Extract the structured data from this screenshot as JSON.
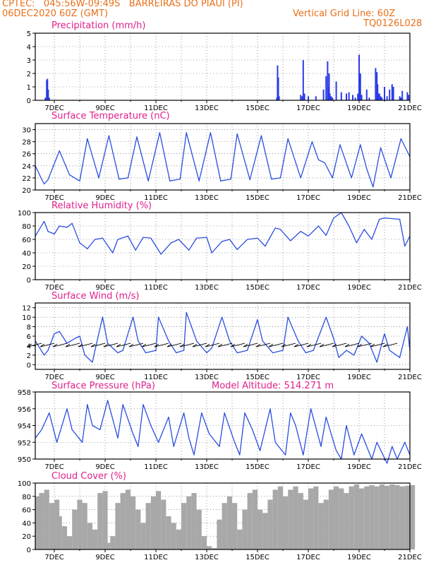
{
  "header": {
    "line1": "CPTEC:   045:56W-09:49S   BARREIRAS DO PIAUI (PI)",
    "line2": "06DEC2020 60Z (GMT)",
    "grid_note": "Vertical Grid Line: 60Z",
    "code": "TQ0126L028"
  },
  "colors": {
    "line": "#2a4de0",
    "bar": "#2a3be6",
    "cloud": "#a8a8a8",
    "title": "#e0208c",
    "header": "#e8701a"
  },
  "x_labels": [
    "7DEC",
    "9DEC",
    "11DEC",
    "13DEC",
    "15DEC",
    "17DEC",
    "19DEC",
    "21DEC"
  ],
  "chart_data": [
    {
      "id": "precip",
      "type": "bar",
      "title": "Precipitation (mm/h)",
      "subtitle": "",
      "ylim": [
        0,
        5
      ],
      "yticks": [
        0,
        1,
        2,
        3,
        4,
        5
      ],
      "x_range_days": [
        6.25,
        21.0
      ],
      "series": [
        {
          "x": [
            6.65,
            6.7,
            6.73,
            6.76,
            6.8,
            15.76,
            15.79,
            15.82,
            15.85,
            16.7,
            16.76,
            16.8,
            16.85,
            17.0,
            17.3,
            17.6,
            17.7,
            17.76,
            17.79,
            17.82,
            17.85,
            17.9,
            17.95,
            18.1,
            18.3,
            18.5,
            18.6,
            18.75,
            18.85,
            18.95,
            19.0,
            19.05,
            19.1,
            19.3,
            19.4,
            19.65,
            19.7,
            19.73,
            19.76,
            19.8,
            19.85,
            19.9,
            20.0,
            20.1,
            20.2,
            20.3,
            20.35,
            20.6,
            20.65,
            20.7,
            20.9,
            20.95
          ],
          "values": [
            0.2,
            1.5,
            1.6,
            0.8,
            0.2,
            0.2,
            2.6,
            1.7,
            0.3,
            0.4,
            0.3,
            3.0,
            0.5,
            0.3,
            0.3,
            0.8,
            1.8,
            2.9,
            1.0,
            2.0,
            0.5,
            0.3,
            0.2,
            1.4,
            0.6,
            0.5,
            0.6,
            0.4,
            0.2,
            0.5,
            3.4,
            2.0,
            0.4,
            0.8,
            0.2,
            2.4,
            2.1,
            1.2,
            0.5,
            0.5,
            0.3,
            0.2,
            1.0,
            0.3,
            0.8,
            1.2,
            1.0,
            0.3,
            0.2,
            0.7,
            0.6,
            0.4
          ]
        }
      ]
    },
    {
      "id": "temp",
      "type": "line",
      "title": "Surface Temperature (nC)",
      "subtitle": "",
      "ylim": [
        20,
        31
      ],
      "yticks": [
        20,
        22,
        24,
        26,
        28,
        30
      ],
      "x_range_days": [
        6.25,
        21.0
      ],
      "series": [
        {
          "x": [
            6.25,
            6.5,
            6.6,
            6.75,
            7.2,
            7.6,
            8.0,
            8.3,
            8.75,
            9.15,
            9.55,
            9.9,
            10.25,
            10.7,
            11.15,
            11.55,
            11.95,
            12.2,
            12.7,
            13.15,
            13.55,
            13.95,
            14.2,
            14.7,
            15.15,
            15.55,
            15.9,
            16.2,
            16.7,
            17.15,
            17.4,
            17.65,
            17.95,
            18.25,
            18.7,
            19.05,
            19.3,
            19.55,
            19.85,
            20.25,
            20.65,
            21.0
          ],
          "values": [
            24.0,
            21.8,
            21.0,
            21.7,
            26.5,
            22.5,
            21.5,
            28.5,
            22.0,
            29.0,
            21.8,
            22.0,
            28.8,
            21.5,
            29.5,
            21.5,
            21.8,
            29.5,
            21.5,
            29.5,
            21.5,
            21.8,
            29.3,
            21.7,
            29.0,
            21.8,
            22.0,
            28.5,
            22.0,
            28.0,
            25.0,
            24.5,
            22.0,
            27.5,
            22.0,
            27.5,
            23.5,
            20.5,
            27.0,
            22.0,
            28.5,
            25.5
          ]
        }
      ]
    },
    {
      "id": "rh",
      "type": "line",
      "title": "Relative Humidity (%)",
      "subtitle": "",
      "ylim": [
        0,
        100
      ],
      "yticks": [
        0,
        20,
        40,
        60,
        80,
        100
      ],
      "x_range_days": [
        6.25,
        21.0
      ],
      "series": [
        {
          "x": [
            6.25,
            6.6,
            6.75,
            7.0,
            7.2,
            7.5,
            7.7,
            8.0,
            8.3,
            8.6,
            8.9,
            9.3,
            9.5,
            9.9,
            10.2,
            10.5,
            10.8,
            11.2,
            11.6,
            11.9,
            12.3,
            12.6,
            13.0,
            13.2,
            13.6,
            13.9,
            14.2,
            14.6,
            15.0,
            15.3,
            15.7,
            15.9,
            16.3,
            16.7,
            17.0,
            17.4,
            17.7,
            18.0,
            18.3,
            18.6,
            18.9,
            19.2,
            19.5,
            19.8,
            20.0,
            20.6,
            20.8,
            21.0
          ],
          "values": [
            65,
            87,
            72,
            68,
            80,
            78,
            84,
            55,
            46,
            60,
            62,
            40,
            60,
            65,
            44,
            63,
            62,
            38,
            55,
            60,
            44,
            62,
            63,
            40,
            57,
            60,
            45,
            60,
            62,
            50,
            77,
            75,
            58,
            72,
            65,
            80,
            66,
            92,
            100,
            80,
            55,
            75,
            60,
            90,
            92,
            90,
            50,
            65
          ]
        }
      ]
    },
    {
      "id": "wind",
      "type": "line",
      "title": "Surface Wind (m/s)",
      "subtitle": "",
      "ylim": [
        -1,
        13
      ],
      "yticks": [
        0,
        2,
        4,
        6,
        8,
        10,
        12
      ],
      "x_range_days": [
        6.25,
        21.0
      ],
      "series": [
        {
          "x": [
            6.25,
            6.6,
            6.75,
            7.0,
            7.2,
            7.5,
            7.8,
            8.0,
            8.2,
            8.5,
            8.6,
            8.9,
            9.1,
            9.5,
            9.7,
            10.1,
            10.3,
            10.6,
            11.0,
            11.1,
            11.5,
            11.8,
            12.1,
            12.2,
            12.6,
            13.0,
            13.2,
            13.6,
            13.9,
            14.2,
            14.6,
            15.0,
            15.2,
            15.6,
            16.0,
            16.2,
            16.6,
            16.9,
            17.2,
            17.7,
            18.0,
            18.2,
            18.5,
            18.8,
            19.1,
            19.4,
            19.7,
            20.0,
            20.2,
            20.6,
            20.9,
            21.0
          ],
          "values": [
            5.0,
            2.0,
            3.0,
            6.5,
            7.0,
            4.5,
            5.5,
            6.0,
            2.0,
            0.5,
            3.0,
            10.0,
            4.5,
            2.5,
            3.0,
            10.0,
            5.0,
            2.5,
            3.0,
            10.0,
            5.0,
            2.5,
            3.0,
            11.0,
            5.0,
            2.5,
            3.5,
            10.0,
            5.0,
            2.5,
            3.0,
            9.5,
            5.0,
            2.5,
            3.0,
            10.0,
            5.0,
            2.5,
            3.0,
            10.0,
            5.5,
            1.5,
            3.0,
            2.0,
            6.0,
            4.5,
            0.5,
            6.5,
            3.0,
            1.5,
            8.0,
            3.0
          ]
        }
      ]
    },
    {
      "id": "pressure",
      "type": "line",
      "title": "Surface Pressure (hPa)",
      "subtitle": "Model Altitude: 514.271 m",
      "ylim": [
        950,
        958
      ],
      "yticks": [
        950,
        952,
        954,
        956,
        958
      ],
      "x_range_days": [
        6.25,
        21.0
      ],
      "series": [
        {
          "x": [
            6.25,
            6.5,
            6.8,
            7.1,
            7.5,
            7.7,
            8.1,
            8.3,
            8.5,
            8.8,
            9.1,
            9.5,
            9.7,
            10.1,
            10.3,
            10.5,
            10.8,
            11.1,
            11.5,
            11.7,
            12.1,
            12.3,
            12.5,
            12.8,
            13.1,
            13.5,
            13.7,
            14.1,
            14.3,
            14.5,
            14.8,
            15.1,
            15.5,
            15.7,
            16.1,
            16.3,
            16.5,
            16.8,
            17.1,
            17.5,
            17.7,
            18.1,
            18.3,
            18.5,
            18.8,
            19.1,
            19.5,
            19.7,
            20.1,
            20.3,
            20.5,
            20.8,
            21.0
          ],
          "values": [
            952.5,
            953.5,
            955.5,
            952.0,
            956.0,
            953.5,
            952.0,
            956.5,
            954.0,
            953.5,
            957.0,
            952.5,
            956.5,
            953.0,
            951.5,
            956.5,
            954.0,
            952.0,
            955.0,
            951.5,
            955.5,
            952.5,
            950.5,
            955.5,
            953.0,
            951.5,
            955.5,
            952.0,
            950.5,
            955.5,
            953.5,
            951.0,
            956.0,
            952.0,
            950.5,
            955.5,
            954.0,
            950.5,
            956.0,
            951.5,
            955.0,
            951.0,
            950.0,
            954.0,
            950.5,
            953.0,
            950.0,
            952.0,
            949.5,
            951.5,
            950.0,
            952.0,
            950.5
          ]
        }
      ]
    },
    {
      "id": "cloud",
      "type": "area",
      "title": "Cloud Cover (%)",
      "subtitle": "",
      "ylim": [
        0,
        100
      ],
      "yticks": [
        0,
        20,
        40,
        60,
        80,
        100
      ],
      "x_range_days": [
        6.25,
        21.0
      ],
      "series": [
        {
          "x": [
            6.25,
            6.4,
            6.6,
            6.8,
            7.0,
            7.1,
            7.3,
            7.5,
            7.7,
            7.9,
            8.1,
            8.3,
            8.5,
            8.7,
            8.9,
            9.0,
            9.2,
            9.4,
            9.6,
            9.8,
            10.0,
            10.2,
            10.4,
            10.6,
            10.8,
            11.0,
            11.2,
            11.4,
            11.6,
            11.8,
            12.0,
            12.2,
            12.4,
            12.6,
            12.8,
            13.0,
            13.2,
            13.4,
            13.6,
            13.8,
            14.0,
            14.2,
            14.4,
            14.6,
            14.8,
            15.0,
            15.2,
            15.4,
            15.6,
            15.8,
            16.0,
            16.2,
            16.4,
            16.6,
            16.8,
            17.0,
            17.2,
            17.4,
            17.6,
            17.8,
            18.0,
            18.2,
            18.4,
            18.6,
            18.8,
            19.0,
            19.2,
            19.4,
            19.6,
            19.8,
            20.0,
            20.2,
            20.4,
            20.6,
            20.8,
            21.0
          ],
          "values": [
            80,
            85,
            90,
            70,
            75,
            50,
            35,
            20,
            60,
            75,
            70,
            40,
            30,
            85,
            88,
            10,
            20,
            70,
            85,
            90,
            80,
            60,
            40,
            70,
            80,
            88,
            75,
            50,
            40,
            30,
            70,
            80,
            85,
            60,
            20,
            5,
            2,
            45,
            70,
            80,
            70,
            30,
            60,
            85,
            90,
            60,
            55,
            75,
            90,
            95,
            80,
            90,
            95,
            85,
            75,
            92,
            95,
            70,
            75,
            90,
            95,
            92,
            85,
            95,
            98,
            92,
            95,
            97,
            95,
            98,
            96,
            98,
            97,
            95,
            96,
            97
          ]
        }
      ]
    }
  ]
}
